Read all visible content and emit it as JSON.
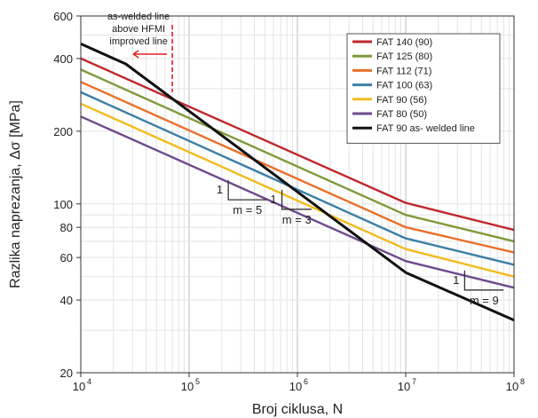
{
  "chart_data": {
    "type": "line",
    "xlabel": "Broj ciklusa, N",
    "ylabel": "Razlika naprezanja, Δσ [MPa]",
    "xscale": "log",
    "yscale": "log",
    "xlim": [
      10000,
      100000000
    ],
    "ylim": [
      20,
      600
    ],
    "grid": true,
    "legend_position": "top-right",
    "x_ticks": [
      {
        "value": 10000,
        "base": "10",
        "exp": "4"
      },
      {
        "value": 100000,
        "base": "10",
        "exp": "5"
      },
      {
        "value": 1000000,
        "base": "10",
        "exp": "6"
      },
      {
        "value": 10000000,
        "base": "10",
        "exp": "7"
      },
      {
        "value": 100000000,
        "base": "10",
        "exp": "8"
      }
    ],
    "y_ticks": [
      {
        "value": 20,
        "label": "20"
      },
      {
        "value": 40,
        "label": "40"
      },
      {
        "value": 60,
        "label": "60"
      },
      {
        "value": 80,
        "label": "80"
      },
      {
        "value": 100,
        "label": "100"
      },
      {
        "value": 200,
        "label": "200"
      },
      {
        "value": 400,
        "label": "400"
      },
      {
        "value": 600,
        "label": "600"
      }
    ],
    "series": [
      {
        "name": "FAT 140 (90)",
        "color": "#c0282d",
        "x": [
          10000,
          10000000,
          100000000
        ],
        "y": [
          400,
          101,
          78
        ]
      },
      {
        "name": "FAT 125 (80)",
        "color": "#7f9a3a",
        "x": [
          10000,
          10000000,
          100000000
        ],
        "y": [
          360,
          90,
          70
        ]
      },
      {
        "name": "FAT 112 (71)",
        "color": "#e8702a",
        "x": [
          10000,
          10000000,
          100000000
        ],
        "y": [
          320,
          80,
          63
        ]
      },
      {
        "name": "FAT 100 (63)",
        "color": "#3b7fa6",
        "x": [
          10000,
          10000000,
          100000000
        ],
        "y": [
          290,
          72,
          56
        ]
      },
      {
        "name": "FAT 90 (56)",
        "color": "#f2bb1d",
        "x": [
          10000,
          10000000,
          100000000
        ],
        "y": [
          260,
          65,
          50
        ]
      },
      {
        "name": "FAT 80 (50)",
        "color": "#6d4a8d",
        "x": [
          10000,
          10000000,
          100000000
        ],
        "y": [
          230,
          58,
          45
        ]
      },
      {
        "name": "FAT 90 as- welded line",
        "color": "#111111",
        "x": [
          10000,
          26000,
          10000000,
          100000000
        ],
        "y": [
          460,
          380,
          52,
          33
        ]
      }
    ],
    "annotations": {
      "note_lines": [
        "as-welded line",
        "above HFMI",
        "improved line"
      ],
      "note_color": "#e02020",
      "marker_x": 70000,
      "slope_labels": [
        {
          "one": "1",
          "m": "m = 5"
        },
        {
          "one": "1",
          "m": "m = 3"
        },
        {
          "one": "1",
          "m": "m = 9"
        }
      ]
    }
  }
}
